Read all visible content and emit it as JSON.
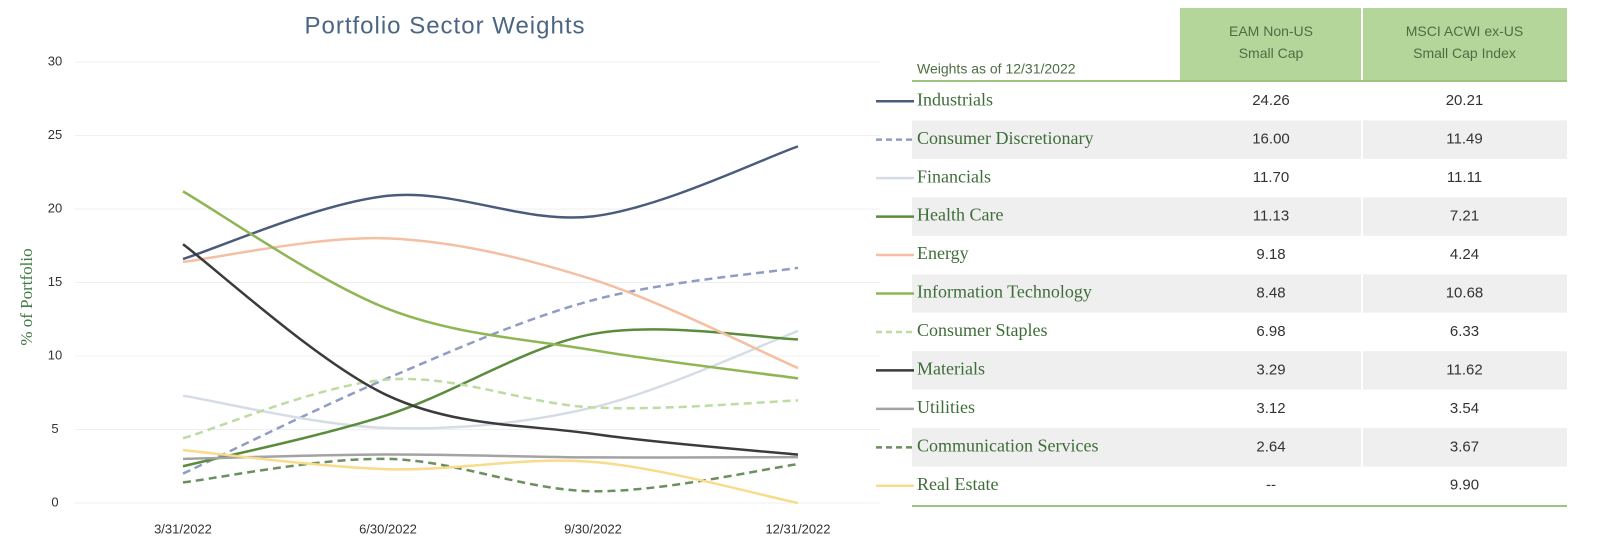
{
  "chart_data": {
    "type": "line",
    "title": "Portfolio Sector Weights",
    "y_label": "% of Portfolio",
    "categories": [
      "3/31/2022",
      "6/30/2022",
      "9/30/2022",
      "12/31/2022"
    ],
    "ylim": [
      0,
      30
    ],
    "yticks": [
      0,
      5,
      10,
      15,
      20,
      25,
      30
    ],
    "grid": true,
    "smooth": true,
    "series": [
      {
        "name": "Industrials",
        "color": "#4b5b7c",
        "values": [
          16.6,
          20.9,
          19.5,
          24.26
        ]
      },
      {
        "name": "Consumer Discretionary",
        "color": "#8f9dc2",
        "dashed": true,
        "values": [
          2.0,
          8.5,
          13.8,
          16.0
        ]
      },
      {
        "name": "Financials",
        "color": "#d6dce6",
        "values": [
          7.3,
          5.1,
          6.5,
          11.7
        ]
      },
      {
        "name": "Health Care",
        "color": "#5b8c3d",
        "values": [
          2.5,
          6.0,
          11.5,
          11.13
        ]
      },
      {
        "name": "Energy",
        "color": "#f5bfa3",
        "values": [
          16.4,
          18.0,
          15.2,
          9.18
        ]
      },
      {
        "name": "Information Technology",
        "color": "#8fb654",
        "values": [
          21.2,
          13.2,
          10.4,
          8.48
        ]
      },
      {
        "name": "Consumer Staples",
        "color": "#bcdca2",
        "dashed": true,
        "values": [
          4.4,
          8.4,
          6.5,
          6.98
        ]
      },
      {
        "name": "Materials",
        "color": "#3b3b3b",
        "values": [
          17.6,
          7.3,
          4.7,
          3.29
        ]
      },
      {
        "name": "Utilities",
        "color": "#a3a3a3",
        "values": [
          3.0,
          3.3,
          3.1,
          3.12
        ]
      },
      {
        "name": "Communication Services",
        "color": "#6c8f5f",
        "dashed": true,
        "values": [
          1.4,
          3.0,
          0.8,
          2.64
        ]
      },
      {
        "name": "Real Estate",
        "color": "#f8dc8c",
        "values": [
          3.6,
          2.3,
          2.8,
          0
        ]
      }
    ]
  },
  "table": {
    "caption": "Weights as of 12/31/2022",
    "columns": [
      "EAM Non-US Small Cap",
      "MSCI ACWI ex-US Small Cap Index"
    ],
    "rows": [
      [
        "24.26",
        "20.21"
      ],
      [
        "16.00",
        "11.49"
      ],
      [
        "11.70",
        "11.11"
      ],
      [
        "11.13",
        "7.21"
      ],
      [
        "9.18",
        "4.24"
      ],
      [
        "8.48",
        "10.68"
      ],
      [
        "6.98",
        "6.33"
      ],
      [
        "3.29",
        "11.62"
      ],
      [
        "3.12",
        "3.54"
      ],
      [
        "2.64",
        "3.67"
      ],
      [
        "--",
        "9.90"
      ]
    ]
  }
}
